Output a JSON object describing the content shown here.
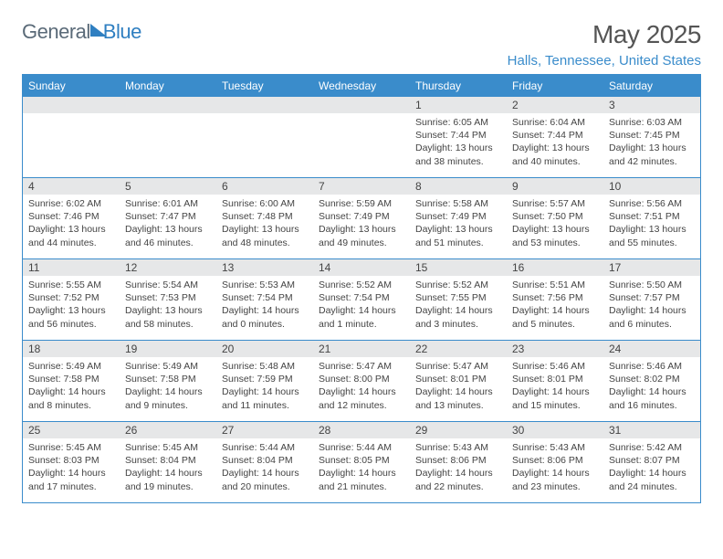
{
  "logo": {
    "word1": "General",
    "word2": "Blue"
  },
  "title": "May 2025",
  "location": "Halls, Tennessee, United States",
  "weekdays": [
    "Sunday",
    "Monday",
    "Tuesday",
    "Wednesday",
    "Thursday",
    "Friday",
    "Saturday"
  ],
  "colors": {
    "header_blue": "#3a8ccb",
    "strip_gray": "#e6e7e8",
    "text": "#444444",
    "title_gray": "#555555"
  },
  "weeks": [
    [
      {
        "day": "",
        "sunrise": "",
        "sunset": "",
        "daylight": ""
      },
      {
        "day": "",
        "sunrise": "",
        "sunset": "",
        "daylight": ""
      },
      {
        "day": "",
        "sunrise": "",
        "sunset": "",
        "daylight": ""
      },
      {
        "day": "",
        "sunrise": "",
        "sunset": "",
        "daylight": ""
      },
      {
        "day": "1",
        "sunrise": "Sunrise: 6:05 AM",
        "sunset": "Sunset: 7:44 PM",
        "daylight": "Daylight: 13 hours and 38 minutes."
      },
      {
        "day": "2",
        "sunrise": "Sunrise: 6:04 AM",
        "sunset": "Sunset: 7:44 PM",
        "daylight": "Daylight: 13 hours and 40 minutes."
      },
      {
        "day": "3",
        "sunrise": "Sunrise: 6:03 AM",
        "sunset": "Sunset: 7:45 PM",
        "daylight": "Daylight: 13 hours and 42 minutes."
      }
    ],
    [
      {
        "day": "4",
        "sunrise": "Sunrise: 6:02 AM",
        "sunset": "Sunset: 7:46 PM",
        "daylight": "Daylight: 13 hours and 44 minutes."
      },
      {
        "day": "5",
        "sunrise": "Sunrise: 6:01 AM",
        "sunset": "Sunset: 7:47 PM",
        "daylight": "Daylight: 13 hours and 46 minutes."
      },
      {
        "day": "6",
        "sunrise": "Sunrise: 6:00 AM",
        "sunset": "Sunset: 7:48 PM",
        "daylight": "Daylight: 13 hours and 48 minutes."
      },
      {
        "day": "7",
        "sunrise": "Sunrise: 5:59 AM",
        "sunset": "Sunset: 7:49 PM",
        "daylight": "Daylight: 13 hours and 49 minutes."
      },
      {
        "day": "8",
        "sunrise": "Sunrise: 5:58 AM",
        "sunset": "Sunset: 7:49 PM",
        "daylight": "Daylight: 13 hours and 51 minutes."
      },
      {
        "day": "9",
        "sunrise": "Sunrise: 5:57 AM",
        "sunset": "Sunset: 7:50 PM",
        "daylight": "Daylight: 13 hours and 53 minutes."
      },
      {
        "day": "10",
        "sunrise": "Sunrise: 5:56 AM",
        "sunset": "Sunset: 7:51 PM",
        "daylight": "Daylight: 13 hours and 55 minutes."
      }
    ],
    [
      {
        "day": "11",
        "sunrise": "Sunrise: 5:55 AM",
        "sunset": "Sunset: 7:52 PM",
        "daylight": "Daylight: 13 hours and 56 minutes."
      },
      {
        "day": "12",
        "sunrise": "Sunrise: 5:54 AM",
        "sunset": "Sunset: 7:53 PM",
        "daylight": "Daylight: 13 hours and 58 minutes."
      },
      {
        "day": "13",
        "sunrise": "Sunrise: 5:53 AM",
        "sunset": "Sunset: 7:54 PM",
        "daylight": "Daylight: 14 hours and 0 minutes."
      },
      {
        "day": "14",
        "sunrise": "Sunrise: 5:52 AM",
        "sunset": "Sunset: 7:54 PM",
        "daylight": "Daylight: 14 hours and 1 minute."
      },
      {
        "day": "15",
        "sunrise": "Sunrise: 5:52 AM",
        "sunset": "Sunset: 7:55 PM",
        "daylight": "Daylight: 14 hours and 3 minutes."
      },
      {
        "day": "16",
        "sunrise": "Sunrise: 5:51 AM",
        "sunset": "Sunset: 7:56 PM",
        "daylight": "Daylight: 14 hours and 5 minutes."
      },
      {
        "day": "17",
        "sunrise": "Sunrise: 5:50 AM",
        "sunset": "Sunset: 7:57 PM",
        "daylight": "Daylight: 14 hours and 6 minutes."
      }
    ],
    [
      {
        "day": "18",
        "sunrise": "Sunrise: 5:49 AM",
        "sunset": "Sunset: 7:58 PM",
        "daylight": "Daylight: 14 hours and 8 minutes."
      },
      {
        "day": "19",
        "sunrise": "Sunrise: 5:49 AM",
        "sunset": "Sunset: 7:58 PM",
        "daylight": "Daylight: 14 hours and 9 minutes."
      },
      {
        "day": "20",
        "sunrise": "Sunrise: 5:48 AM",
        "sunset": "Sunset: 7:59 PM",
        "daylight": "Daylight: 14 hours and 11 minutes."
      },
      {
        "day": "21",
        "sunrise": "Sunrise: 5:47 AM",
        "sunset": "Sunset: 8:00 PM",
        "daylight": "Daylight: 14 hours and 12 minutes."
      },
      {
        "day": "22",
        "sunrise": "Sunrise: 5:47 AM",
        "sunset": "Sunset: 8:01 PM",
        "daylight": "Daylight: 14 hours and 13 minutes."
      },
      {
        "day": "23",
        "sunrise": "Sunrise: 5:46 AM",
        "sunset": "Sunset: 8:01 PM",
        "daylight": "Daylight: 14 hours and 15 minutes."
      },
      {
        "day": "24",
        "sunrise": "Sunrise: 5:46 AM",
        "sunset": "Sunset: 8:02 PM",
        "daylight": "Daylight: 14 hours and 16 minutes."
      }
    ],
    [
      {
        "day": "25",
        "sunrise": "Sunrise: 5:45 AM",
        "sunset": "Sunset: 8:03 PM",
        "daylight": "Daylight: 14 hours and 17 minutes."
      },
      {
        "day": "26",
        "sunrise": "Sunrise: 5:45 AM",
        "sunset": "Sunset: 8:04 PM",
        "daylight": "Daylight: 14 hours and 19 minutes."
      },
      {
        "day": "27",
        "sunrise": "Sunrise: 5:44 AM",
        "sunset": "Sunset: 8:04 PM",
        "daylight": "Daylight: 14 hours and 20 minutes."
      },
      {
        "day": "28",
        "sunrise": "Sunrise: 5:44 AM",
        "sunset": "Sunset: 8:05 PM",
        "daylight": "Daylight: 14 hours and 21 minutes."
      },
      {
        "day": "29",
        "sunrise": "Sunrise: 5:43 AM",
        "sunset": "Sunset: 8:06 PM",
        "daylight": "Daylight: 14 hours and 22 minutes."
      },
      {
        "day": "30",
        "sunrise": "Sunrise: 5:43 AM",
        "sunset": "Sunset: 8:06 PM",
        "daylight": "Daylight: 14 hours and 23 minutes."
      },
      {
        "day": "31",
        "sunrise": "Sunrise: 5:42 AM",
        "sunset": "Sunset: 8:07 PM",
        "daylight": "Daylight: 14 hours and 24 minutes."
      }
    ]
  ]
}
